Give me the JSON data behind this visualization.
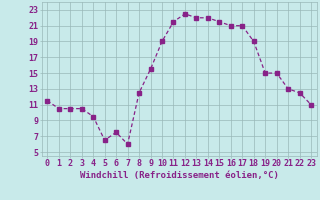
{
  "x": [
    0,
    1,
    2,
    3,
    4,
    5,
    6,
    7,
    8,
    9,
    10,
    11,
    12,
    13,
    14,
    15,
    16,
    17,
    18,
    19,
    20,
    21,
    22,
    23
  ],
  "y": [
    11.5,
    10.5,
    10.5,
    10.5,
    9.5,
    6.5,
    7.5,
    6.0,
    12.5,
    15.5,
    19.0,
    21.5,
    22.5,
    22.0,
    22.0,
    21.5,
    21.0,
    21.0,
    19.0,
    15.0,
    15.0,
    13.0,
    12.5,
    11.0
  ],
  "line_color": "#882288",
  "marker": "s",
  "marker_size": 2.2,
  "background_color": "#c8eaea",
  "grid_color": "#9ab8b8",
  "xlabel": "Windchill (Refroidissement éolien,°C)",
  "xlabel_fontsize": 6.5,
  "ylabel_ticks": [
    5,
    7,
    9,
    11,
    13,
    15,
    17,
    19,
    21,
    23
  ],
  "xlim": [
    -0.5,
    23.5
  ],
  "ylim": [
    4.5,
    24.0
  ],
  "xticks": [
    0,
    1,
    2,
    3,
    4,
    5,
    6,
    7,
    8,
    9,
    10,
    11,
    12,
    13,
    14,
    15,
    16,
    17,
    18,
    19,
    20,
    21,
    22,
    23
  ],
  "tick_fontsize": 6.0
}
